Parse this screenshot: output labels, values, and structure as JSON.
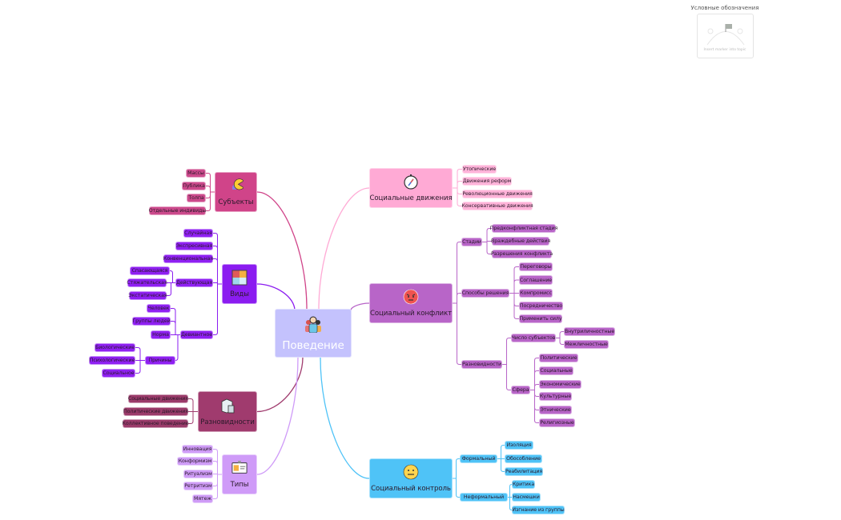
{
  "legend": {
    "title": "Условные обозначения",
    "hint": "Insert marker into topic",
    "icon": "flag-icon"
  },
  "root": {
    "label": "Поведение",
    "icon": "people-icon",
    "color": "#c4c2fd"
  },
  "branches": [
    {
      "label": "Субъекты",
      "icon": "pacman-icon",
      "color": "#d04489",
      "child_color": "#cc4a8c",
      "children": [
        {
          "label": "Массы"
        },
        {
          "label": "Публика"
        },
        {
          "label": "Толпа"
        },
        {
          "label": "Отдельные индивиды"
        }
      ]
    },
    {
      "label": "Виды",
      "icon": "puzzle-icon",
      "color": "#8b1cf0",
      "child_color": "#8f20f2",
      "children": [
        {
          "label": "Случайная"
        },
        {
          "label": "Экспресивная"
        },
        {
          "label": "Конвенциональная"
        },
        {
          "label": "Действующая",
          "children": [
            {
              "label": "Спасающаяся"
            },
            {
              "label": "Стяжательская"
            },
            {
              "label": "Экстатическая"
            }
          ]
        },
        {
          "label": "Девиантное",
          "children": [
            {
              "label": "Человек"
            },
            {
              "label": "Группы людей"
            },
            {
              "label": "Норма"
            },
            {
              "label": "Причины",
              "children": [
                {
                  "label": "Биологические"
                },
                {
                  "label": "Психологические"
                },
                {
                  "label": "Социальное"
                }
              ]
            }
          ]
        }
      ]
    },
    {
      "label": "Разновидности",
      "icon": "cube-icon",
      "color": "#a03b6e",
      "child_color": "#9b3b6a",
      "children": [
        {
          "label": "Социальные движения"
        },
        {
          "label": "Политические движения"
        },
        {
          "label": "Коллективное поведение"
        }
      ]
    },
    {
      "label": "Типы",
      "icon": "id-badge-icon",
      "color": "#cf9bf8",
      "child_color": "#cf9cf7",
      "children": [
        {
          "label": "Инновация"
        },
        {
          "label": "Конформизм"
        },
        {
          "label": "Ритуализм"
        },
        {
          "label": "Ретритизм"
        },
        {
          "label": "Мятеж"
        }
      ]
    },
    {
      "label": "Социальные движения",
      "icon": "compass-icon",
      "color": "#ffaad5",
      "child_color": "#ffb3d9",
      "children": [
        {
          "label": "Утопические"
        },
        {
          "label": "Движения реформ"
        },
        {
          "label": "Революционные движения"
        },
        {
          "label": "Консервативные движения"
        }
      ]
    },
    {
      "label": "Социальный конфликт",
      "icon": "angry-face-icon",
      "color": "#b865c8",
      "child_color": "#b865c8",
      "children": [
        {
          "label": "Стадии",
          "children": [
            {
              "label": "Предконфликтная стадия"
            },
            {
              "label": "Враждебные действия"
            },
            {
              "label": "Разрешения конфликта"
            }
          ]
        },
        {
          "label": "Способы решения",
          "children": [
            {
              "label": "Переговоры"
            },
            {
              "label": "Соглашение"
            },
            {
              "label": "Компромисс"
            },
            {
              "label": "Посредничество"
            },
            {
              "label": "Применить силу"
            }
          ]
        },
        {
          "label": "Разновидности",
          "children": [
            {
              "label": "Число субъектов",
              "children": [
                {
                  "label": "Внутриличностные"
                },
                {
                  "label": "Межличностные"
                }
              ]
            },
            {
              "label": "Сфера",
              "children": [
                {
                  "label": "Политические"
                },
                {
                  "label": "Социальные"
                },
                {
                  "label": "Экономические"
                },
                {
                  "label": "Культурные"
                },
                {
                  "label": "Этнические"
                },
                {
                  "label": "Религиозные"
                }
              ]
            }
          ]
        }
      ]
    },
    {
      "label": "Социальный контроль",
      "icon": "neutral-face-icon",
      "color": "#4fc3f7",
      "child_color": "#4fc3f7",
      "children": [
        {
          "label": "Формальный",
          "children": [
            {
              "label": "Изоляция"
            },
            {
              "label": "Обособление"
            },
            {
              "label": "Реабилитация"
            }
          ]
        },
        {
          "label": "Неформальный",
          "children": [
            {
              "label": "Критика"
            },
            {
              "label": "Насмешки"
            },
            {
              "label": "Изгнание из группы"
            }
          ]
        }
      ]
    }
  ]
}
